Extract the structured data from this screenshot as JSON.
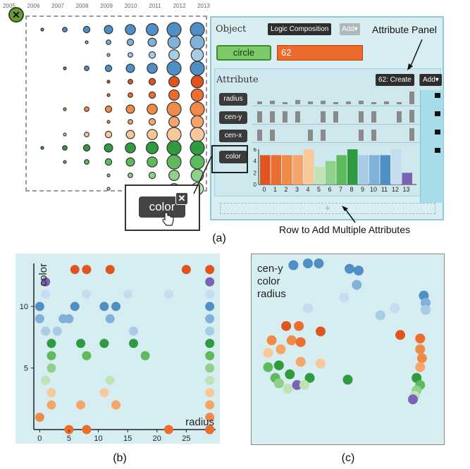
{
  "panel_a": {
    "years": [
      "2005",
      "2006",
      "2007",
      "2008",
      "2009",
      "2010",
      "2011",
      "2012",
      "2013"
    ],
    "close_symbol": "✕",
    "object_header": "Object",
    "logic_composition_btn": "Logic Composition",
    "add_btn": "Add▾",
    "object_name": "circle",
    "object_value": "62",
    "attribute_header": "Attribute",
    "create_btn": "62: Create",
    "attr_add_btn": "Add▾",
    "attributes": [
      "radius",
      "cen-y",
      "cen-x",
      "color"
    ],
    "add_row_symbol": "+",
    "popup_label": "color",
    "popup_close": "✕",
    "hist_ticks": [
      "0",
      "1",
      "2",
      "3",
      "4",
      "5",
      "6",
      "7",
      "8",
      "9",
      "10",
      "11",
      "12",
      "13"
    ],
    "hist_y_ticks": [
      "0",
      "2",
      "4",
      "6"
    ],
    "annotation_attribute_panel": "Attribute Panel",
    "annotation_add_row": "Row to Add Multiple Attributes",
    "caption": "(a)"
  },
  "chart_data": [
    {
      "type": "bar",
      "categories": [
        "0",
        "1",
        "2",
        "3",
        "4",
        "5",
        "6",
        "7",
        "8",
        "9",
        "10",
        "11",
        "12",
        "13"
      ],
      "values": [
        5,
        5,
        5,
        5,
        6,
        3,
        4,
        5,
        6,
        5,
        5,
        5,
        6,
        2
      ],
      "colors": [
        "#e0551f",
        "#ec6e2f",
        "#f08a48",
        "#f6a56a",
        "#f9c89a",
        "#bfe3b4",
        "#8fd08a",
        "#5fb95d",
        "#2f9a3e",
        "#a8cce3",
        "#7fb1d9",
        "#4f8fc6",
        "#c6dcef",
        "#7b63b3"
      ],
      "ylim": [
        0,
        6
      ],
      "yticks": [
        0,
        2,
        4,
        6
      ]
    },
    {
      "type": "scatter",
      "caption": "(b)",
      "xlabel": "radius",
      "ylabel": "color",
      "xticks": [
        0,
        5,
        10,
        15,
        20,
        25
      ],
      "yticks": [
        5,
        10
      ],
      "xlim": [
        -1,
        30
      ],
      "ylim": [
        0,
        13.5
      ],
      "points": [
        {
          "x": 6,
          "y": 13,
          "c": "#e0551f"
        },
        {
          "x": 8,
          "y": 13,
          "c": "#e0551f"
        },
        {
          "x": 12,
          "y": 13,
          "c": "#e0551f"
        },
        {
          "x": 25,
          "y": 13,
          "c": "#e0551f"
        },
        {
          "x": 29,
          "y": 13,
          "c": "#e0551f"
        },
        {
          "x": 1,
          "y": 12,
          "c": "#7b63b3"
        },
        {
          "x": 29,
          "y": 12,
          "c": "#7b63b3"
        },
        {
          "x": 1,
          "y": 11,
          "c": "#c6dcef"
        },
        {
          "x": 8,
          "y": 11,
          "c": "#c6dcef"
        },
        {
          "x": 15,
          "y": 11,
          "c": "#c6dcef"
        },
        {
          "x": 22,
          "y": 11,
          "c": "#c6dcef"
        },
        {
          "x": 29,
          "y": 11,
          "c": "#c6dcef"
        },
        {
          "x": 0,
          "y": 10,
          "c": "#4f8fc6"
        },
        {
          "x": 6,
          "y": 10,
          "c": "#4f8fc6"
        },
        {
          "x": 11,
          "y": 10,
          "c": "#4f8fc6"
        },
        {
          "x": 13,
          "y": 10,
          "c": "#4f8fc6"
        },
        {
          "x": 29,
          "y": 10,
          "c": "#4f8fc6"
        },
        {
          "x": 0,
          "y": 9,
          "c": "#7fb1d9"
        },
        {
          "x": 4,
          "y": 9,
          "c": "#7fb1d9"
        },
        {
          "x": 5,
          "y": 9,
          "c": "#7fb1d9"
        },
        {
          "x": 12,
          "y": 9,
          "c": "#7fb1d9"
        },
        {
          "x": 29,
          "y": 9,
          "c": "#7fb1d9"
        },
        {
          "x": 1,
          "y": 8,
          "c": "#a8cce3"
        },
        {
          "x": 3,
          "y": 8,
          "c": "#a8cce3"
        },
        {
          "x": 16,
          "y": 8,
          "c": "#a8cce3"
        },
        {
          "x": 29,
          "y": 8,
          "c": "#a8cce3"
        },
        {
          "x": 2,
          "y": 7,
          "c": "#2f9a3e"
        },
        {
          "x": 7,
          "y": 7,
          "c": "#2f9a3e"
        },
        {
          "x": 11,
          "y": 7,
          "c": "#2f9a3e"
        },
        {
          "x": 16,
          "y": 7,
          "c": "#2f9a3e"
        },
        {
          "x": 29,
          "y": 7,
          "c": "#2f9a3e"
        },
        {
          "x": 2,
          "y": 6,
          "c": "#5fb95d"
        },
        {
          "x": 8,
          "y": 6,
          "c": "#5fb95d"
        },
        {
          "x": 18,
          "y": 6,
          "c": "#5fb95d"
        },
        {
          "x": 29,
          "y": 6,
          "c": "#5fb95d"
        },
        {
          "x": 2,
          "y": 5,
          "c": "#8fd08a"
        },
        {
          "x": 29,
          "y": 5,
          "c": "#8fd08a"
        },
        {
          "x": 1,
          "y": 4,
          "c": "#bfe3b4"
        },
        {
          "x": 12,
          "y": 4,
          "c": "#bfe3b4"
        },
        {
          "x": 29,
          "y": 4,
          "c": "#bfe3b4"
        },
        {
          "x": 2,
          "y": 3,
          "c": "#f9c89a"
        },
        {
          "x": 11,
          "y": 3,
          "c": "#f9c89a"
        },
        {
          "x": 29,
          "y": 3,
          "c": "#f9c89a"
        },
        {
          "x": 2,
          "y": 2,
          "c": "#f6a56a"
        },
        {
          "x": 7,
          "y": 2,
          "c": "#f6a56a"
        },
        {
          "x": 13,
          "y": 2,
          "c": "#f6a56a"
        },
        {
          "x": 29,
          "y": 2,
          "c": "#f6a56a"
        },
        {
          "x": 0,
          "y": 1,
          "c": "#f08a48"
        },
        {
          "x": 29,
          "y": 1,
          "c": "#f08a48"
        },
        {
          "x": 5,
          "y": 0,
          "c": "#ec6e2f"
        },
        {
          "x": 8,
          "y": 0,
          "c": "#ec6e2f"
        },
        {
          "x": 22,
          "y": 0,
          "c": "#ec6e2f"
        },
        {
          "x": 29,
          "y": 0,
          "c": "#ec6e2f"
        }
      ]
    },
    {
      "type": "scatter",
      "caption": "(c)",
      "axis_labels": [
        "cen-y",
        "color",
        "radius"
      ],
      "points": [
        {
          "x": 0.2,
          "y": 0.03,
          "c": "#4f8fc6"
        },
        {
          "x": 0.28,
          "y": 0.02,
          "c": "#4f8fc6"
        },
        {
          "x": 0.34,
          "y": 0.02,
          "c": "#4f8fc6"
        },
        {
          "x": 0.51,
          "y": 0.05,
          "c": "#4f8fc6"
        },
        {
          "x": 0.56,
          "y": 0.06,
          "c": "#4f8fc6"
        },
        {
          "x": 0.55,
          "y": 0.14,
          "c": "#7fb1d9"
        },
        {
          "x": 0.92,
          "y": 0.2,
          "c": "#4f8fc6"
        },
        {
          "x": 0.93,
          "y": 0.24,
          "c": "#7fb1d9"
        },
        {
          "x": 0.93,
          "y": 0.28,
          "c": "#a8cce3"
        },
        {
          "x": 0.76,
          "y": 0.27,
          "c": "#c6dcef"
        },
        {
          "x": 0.68,
          "y": 0.31,
          "c": "#a8cce3"
        },
        {
          "x": 0.28,
          "y": 0.27,
          "c": "#c6dcef"
        },
        {
          "x": 0.48,
          "y": 0.21,
          "c": "#c6dcef"
        },
        {
          "x": 0.16,
          "y": 0.37,
          "c": "#e0551f"
        },
        {
          "x": 0.23,
          "y": 0.37,
          "c": "#ec6e2f"
        },
        {
          "x": 0.35,
          "y": 0.4,
          "c": "#e0551f"
        },
        {
          "x": 0.79,
          "y": 0.42,
          "c": "#e0551f"
        },
        {
          "x": 0.9,
          "y": 0.44,
          "c": "#ec6e2f"
        },
        {
          "x": 0.9,
          "y": 0.5,
          "c": "#f08a48"
        },
        {
          "x": 0.91,
          "y": 0.55,
          "c": "#f08a48"
        },
        {
          "x": 0.9,
          "y": 0.6,
          "c": "#f6a56a"
        },
        {
          "x": 0.08,
          "y": 0.45,
          "c": "#f08a48"
        },
        {
          "x": 0.19,
          "y": 0.45,
          "c": "#f08a48"
        },
        {
          "x": 0.24,
          "y": 0.46,
          "c": "#ec6e2f"
        },
        {
          "x": 0.13,
          "y": 0.5,
          "c": "#f6a56a"
        },
        {
          "x": 0.06,
          "y": 0.52,
          "c": "#f9c89a"
        },
        {
          "x": 0.24,
          "y": 0.57,
          "c": "#f6a56a"
        },
        {
          "x": 0.35,
          "y": 0.58,
          "c": "#f9c89a"
        },
        {
          "x": 0.12,
          "y": 0.59,
          "c": "#2f9a3e"
        },
        {
          "x": 0.06,
          "y": 0.6,
          "c": "#5fb95d"
        },
        {
          "x": 0.18,
          "y": 0.64,
          "c": "#2f9a3e"
        },
        {
          "x": 0.29,
          "y": 0.66,
          "c": "#2f9a3e"
        },
        {
          "x": 0.1,
          "y": 0.66,
          "c": "#5fb95d"
        },
        {
          "x": 0.5,
          "y": 0.67,
          "c": "#2f9a3e"
        },
        {
          "x": 0.88,
          "y": 0.66,
          "c": "#2f9a3e"
        },
        {
          "x": 0.9,
          "y": 0.7,
          "c": "#5fb95d"
        },
        {
          "x": 0.88,
          "y": 0.73,
          "c": "#8fd08a"
        },
        {
          "x": 0.87,
          "y": 0.76,
          "c": "#bfe3b4"
        },
        {
          "x": 0.86,
          "y": 0.78,
          "c": "#7b63b3"
        },
        {
          "x": 0.12,
          "y": 0.69,
          "c": "#8fd08a"
        },
        {
          "x": 0.17,
          "y": 0.72,
          "c": "#bfe3b4"
        },
        {
          "x": 0.22,
          "y": 0.7,
          "c": "#7b63b3"
        },
        {
          "x": 0.26,
          "y": 0.7,
          "c": "#bfe3b4"
        }
      ]
    }
  ]
}
